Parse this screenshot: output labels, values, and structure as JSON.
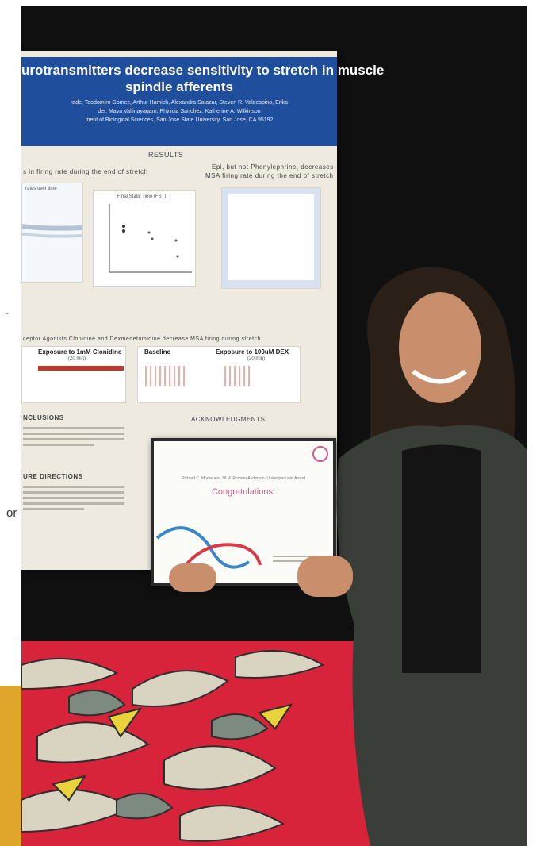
{
  "page_fragments": {
    "top_partial": "",
    "left_dash": "-",
    "left_word": "or"
  },
  "poster": {
    "title_line1": "urotransmitters decrease sensitivity to stretch in muscle",
    "title_line2": "spindle afferents",
    "authors_line1": "rade, Teodomiro Gomez, Arthur Hamich, Alexandra Salazar, Steven R. Valdespino, Erika",
    "authors_line2": "der, Maya Vallinayagam, Phylicia Sanchez, Katherine A. Wilkinson",
    "affiliation": "ment of Biological Sciences, San José State University, San Jose, CA 95192",
    "results_heading": "RESULTS",
    "left_section_heading": "s in firing rate during the end of stretch",
    "right_section_heading_1": "Epi, but not Phenylephrine, decreases",
    "right_section_heading_2": "MSA firing rate during the end of stretch",
    "panel1_title": "rates over time",
    "panel2_title": "Final Static Time (FST)",
    "middle_heading": "ceptor Agonists Clonidine and Dexmedetomidine decrease MSA firing during stretch",
    "exposure_clonidine": "Exposure to 1mM Clonidine",
    "exposure_clonidine_time": "(20 min)",
    "baseline_label": "Baseline",
    "exposure_dex": "Exposure to 100uM DEX",
    "exposure_dex_time": "(20 min)",
    "conclusions_heading": "NCLUSIONS",
    "future_heading": "URE DIRECTIONS",
    "acknowledgments_heading": "ACKNOWLEDGMENTS"
  },
  "certificate": {
    "award_line": "Richard C. Moore and Jill M. Romero Anderson, Undergraduate Award",
    "congratulations": "Congratulations!"
  },
  "colors": {
    "poster_header": "#1f4e9c",
    "accent_block": "#e0a52b",
    "carpet_red": "#d8243a",
    "jacket": "#3a3e38"
  }
}
